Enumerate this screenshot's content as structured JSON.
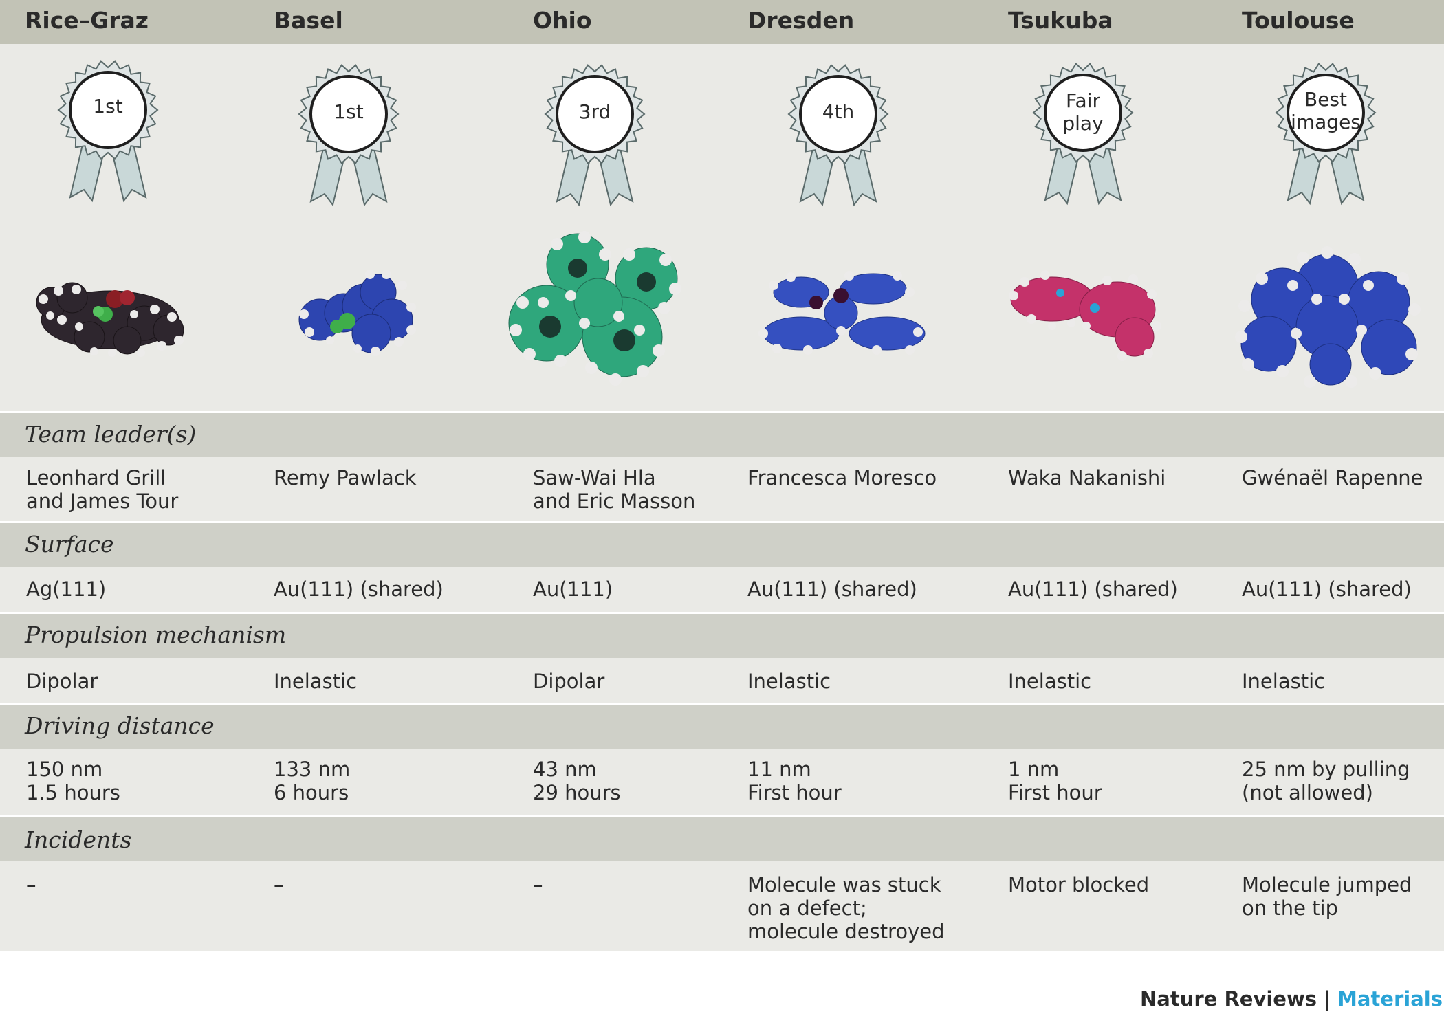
{
  "teams": [
    "Rice–Graz",
    "Basel",
    "Ohio",
    "Dresden",
    "Tsukuba",
    "Toulouse"
  ],
  "awards": [
    "1st",
    "1st",
    "3rd",
    "4th",
    "Fair\nplay",
    "Best\nimages"
  ],
  "sections": {
    "team_leaders": {
      "label": "Team leader(s)",
      "values": [
        "Leonhard Grill\nand James Tour",
        "Remy Pawlack",
        "Saw-Wai Hla\nand Eric Masson",
        "Francesca Moresco",
        "Waka Nakanishi",
        "Gwénaël Rapenne"
      ]
    },
    "surface": {
      "label": "Surface",
      "values": [
        "Ag(111)",
        "Au(111) (shared)",
        "Au(111)",
        "Au(111) (shared)",
        "Au(111) (shared)",
        "Au(111) (shared)"
      ]
    },
    "propulsion": {
      "label": "Propulsion mechanism",
      "values": [
        "Dipolar",
        "Inelastic",
        "Dipolar",
        "Inelastic",
        "Inelastic",
        "Inelastic"
      ]
    },
    "distance": {
      "label": "Driving distance",
      "values": [
        "150 nm\n1.5 hours",
        "133 nm\n6 hours",
        "43 nm\n29 hours",
        "11 nm\nFirst hour",
        "1 nm\nFirst hour",
        "25 nm by pulling\n(not allowed)"
      ]
    },
    "incidents": {
      "label": "Incidents",
      "values": [
        "–",
        "–",
        "–",
        "Molecule was stuck\non a defect;\nmolecule destroyed",
        "Motor blocked",
        "Molecule jumped\non the tip"
      ]
    }
  },
  "footer": {
    "journal": "Nature Reviews",
    "divider": "|",
    "section": "Materials"
  },
  "colors": {
    "header_band": "#c2c3b6",
    "section_band": "#cfd0c8",
    "row_band": "#eaeae6",
    "ribbon": "#c9d8d8",
    "materials_accent": "#2aa3d6",
    "molecule_ricegraz": "#2e262e",
    "molecule_basel": "#2d45b0",
    "molecule_ohio": "#2fa77c",
    "molecule_dresden": "#3550c0",
    "molecule_tsukuba": "#c4326a",
    "molecule_toulouse": "#2f48b8"
  }
}
